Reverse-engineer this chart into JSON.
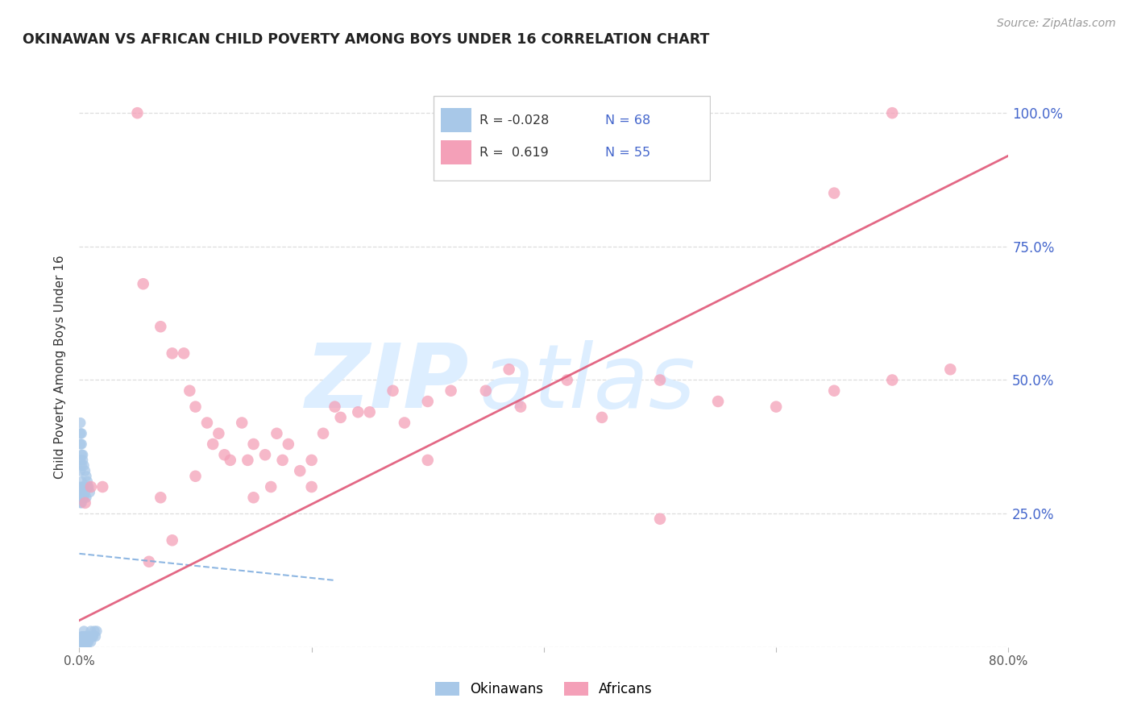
{
  "title": "OKINAWAN VS AFRICAN CHILD POVERTY AMONG BOYS UNDER 16 CORRELATION CHART",
  "source": "Source: ZipAtlas.com",
  "ylabel": "Child Poverty Among Boys Under 16",
  "xlim": [
    0,
    0.8
  ],
  "ylim": [
    0,
    1.05
  ],
  "xticks": [
    0.0,
    0.2,
    0.4,
    0.6,
    0.8
  ],
  "xticklabels": [
    "0.0%",
    "",
    "",
    "",
    "80.0%"
  ],
  "yticks": [
    0.0,
    0.25,
    0.5,
    0.75,
    1.0
  ],
  "yticklabels": [
    "",
    "25.0%",
    "50.0%",
    "75.0%",
    "100.0%"
  ],
  "legend_r_okinawan": "-0.028",
  "legend_n_okinawan": "68",
  "legend_r_african": "0.619",
  "legend_n_african": "55",
  "okinawan_color": "#a8c8e8",
  "african_color": "#f4a0b8",
  "trend_okinawan_color": "#7aaadd",
  "trend_african_color": "#e05878",
  "watermark_zip": "ZIP",
  "watermark_atlas": "atlas",
  "watermark_color": "#ddeeff",
  "grid_color": "#dddddd",
  "right_tick_color": "#4466cc",
  "okinawan_x": [
    0.001,
    0.001,
    0.001,
    0.001,
    0.001,
    0.002,
    0.002,
    0.002,
    0.002,
    0.002,
    0.002,
    0.003,
    0.003,
    0.003,
    0.003,
    0.003,
    0.004,
    0.004,
    0.004,
    0.004,
    0.005,
    0.005,
    0.005,
    0.006,
    0.006,
    0.007,
    0.007,
    0.008,
    0.008,
    0.009,
    0.01,
    0.01,
    0.011,
    0.012,
    0.013,
    0.014,
    0.015,
    0.001,
    0.001,
    0.001,
    0.001,
    0.002,
    0.002,
    0.002,
    0.003,
    0.003,
    0.004,
    0.004,
    0.005,
    0.006,
    0.007,
    0.001,
    0.001,
    0.002,
    0.002,
    0.003,
    0.001,
    0.001,
    0.001,
    0.002,
    0.002,
    0.003,
    0.004,
    0.005,
    0.006,
    0.007,
    0.008,
    0.009
  ],
  "okinawan_y": [
    0.0,
    0.0,
    0.0,
    0.0,
    0.01,
    0.0,
    0.0,
    0.0,
    0.01,
    0.01,
    0.02,
    0.0,
    0.0,
    0.01,
    0.01,
    0.02,
    0.0,
    0.01,
    0.02,
    0.03,
    0.0,
    0.01,
    0.02,
    0.0,
    0.02,
    0.01,
    0.02,
    0.01,
    0.02,
    0.02,
    0.01,
    0.03,
    0.02,
    0.02,
    0.03,
    0.02,
    0.03,
    0.27,
    0.28,
    0.29,
    0.3,
    0.27,
    0.29,
    0.31,
    0.28,
    0.3,
    0.28,
    0.3,
    0.29,
    0.28,
    0.3,
    0.33,
    0.35,
    0.34,
    0.36,
    0.35,
    0.38,
    0.4,
    0.42,
    0.38,
    0.4,
    0.36,
    0.34,
    0.33,
    0.32,
    0.31,
    0.3,
    0.29
  ],
  "african_x": [
    0.005,
    0.01,
    0.02,
    0.05,
    0.055,
    0.07,
    0.08,
    0.09,
    0.095,
    0.1,
    0.11,
    0.115,
    0.12,
    0.125,
    0.13,
    0.14,
    0.145,
    0.15,
    0.16,
    0.165,
    0.17,
    0.175,
    0.18,
    0.19,
    0.2,
    0.21,
    0.22,
    0.225,
    0.24,
    0.25,
    0.27,
    0.28,
    0.3,
    0.32,
    0.35,
    0.37,
    0.38,
    0.42,
    0.45,
    0.5,
    0.55,
    0.6,
    0.65,
    0.7,
    0.75,
    0.07,
    0.1,
    0.15,
    0.2,
    0.3,
    0.06,
    0.08,
    0.5,
    0.65,
    0.7
  ],
  "african_y": [
    0.27,
    0.3,
    0.3,
    1.0,
    0.68,
    0.6,
    0.55,
    0.55,
    0.48,
    0.45,
    0.42,
    0.38,
    0.4,
    0.36,
    0.35,
    0.42,
    0.35,
    0.38,
    0.36,
    0.3,
    0.4,
    0.35,
    0.38,
    0.33,
    0.35,
    0.4,
    0.45,
    0.43,
    0.44,
    0.44,
    0.48,
    0.42,
    0.46,
    0.48,
    0.48,
    0.52,
    0.45,
    0.5,
    0.43,
    0.5,
    0.46,
    0.45,
    0.48,
    0.5,
    0.52,
    0.28,
    0.32,
    0.28,
    0.3,
    0.35,
    0.16,
    0.2,
    0.24,
    0.85,
    1.0
  ],
  "ok_trend_x0": 0.0,
  "ok_trend_x1": 0.22,
  "ok_trend_y0": 0.175,
  "ok_trend_y1": 0.125,
  "af_trend_x0": 0.0,
  "af_trend_x1": 0.8,
  "af_trend_y0": 0.05,
  "af_trend_y1": 0.92,
  "background_color": "#ffffff"
}
